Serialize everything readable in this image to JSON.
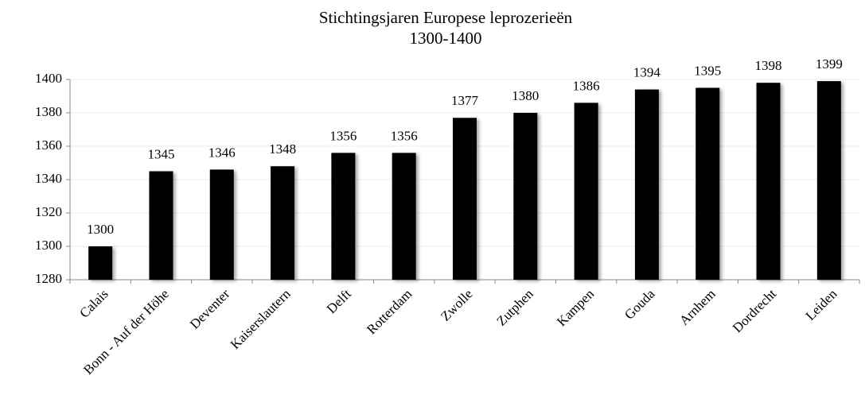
{
  "chart_data": {
    "type": "bar",
    "title": "Stichtingsjaren Europese leprozerieën",
    "subtitle": "1300-1400",
    "categories": [
      "Calais",
      "Bonn - Auf der Höhe",
      "Deventer",
      "Kaiserslautern",
      "Delft",
      "Rotterdam",
      "Zwolle",
      "Zutphen",
      "Kampen",
      "Gouda",
      "Arnhem",
      "Dordrecht",
      "Leiden"
    ],
    "values": [
      1300,
      1345,
      1346,
      1348,
      1356,
      1356,
      1377,
      1380,
      1386,
      1394,
      1395,
      1398,
      1399
    ],
    "color": "#000000",
    "ylim": [
      1280,
      1400
    ],
    "yticks": [
      1280,
      1300,
      1320,
      1340,
      1360,
      1380,
      1400
    ],
    "grid": true
  }
}
